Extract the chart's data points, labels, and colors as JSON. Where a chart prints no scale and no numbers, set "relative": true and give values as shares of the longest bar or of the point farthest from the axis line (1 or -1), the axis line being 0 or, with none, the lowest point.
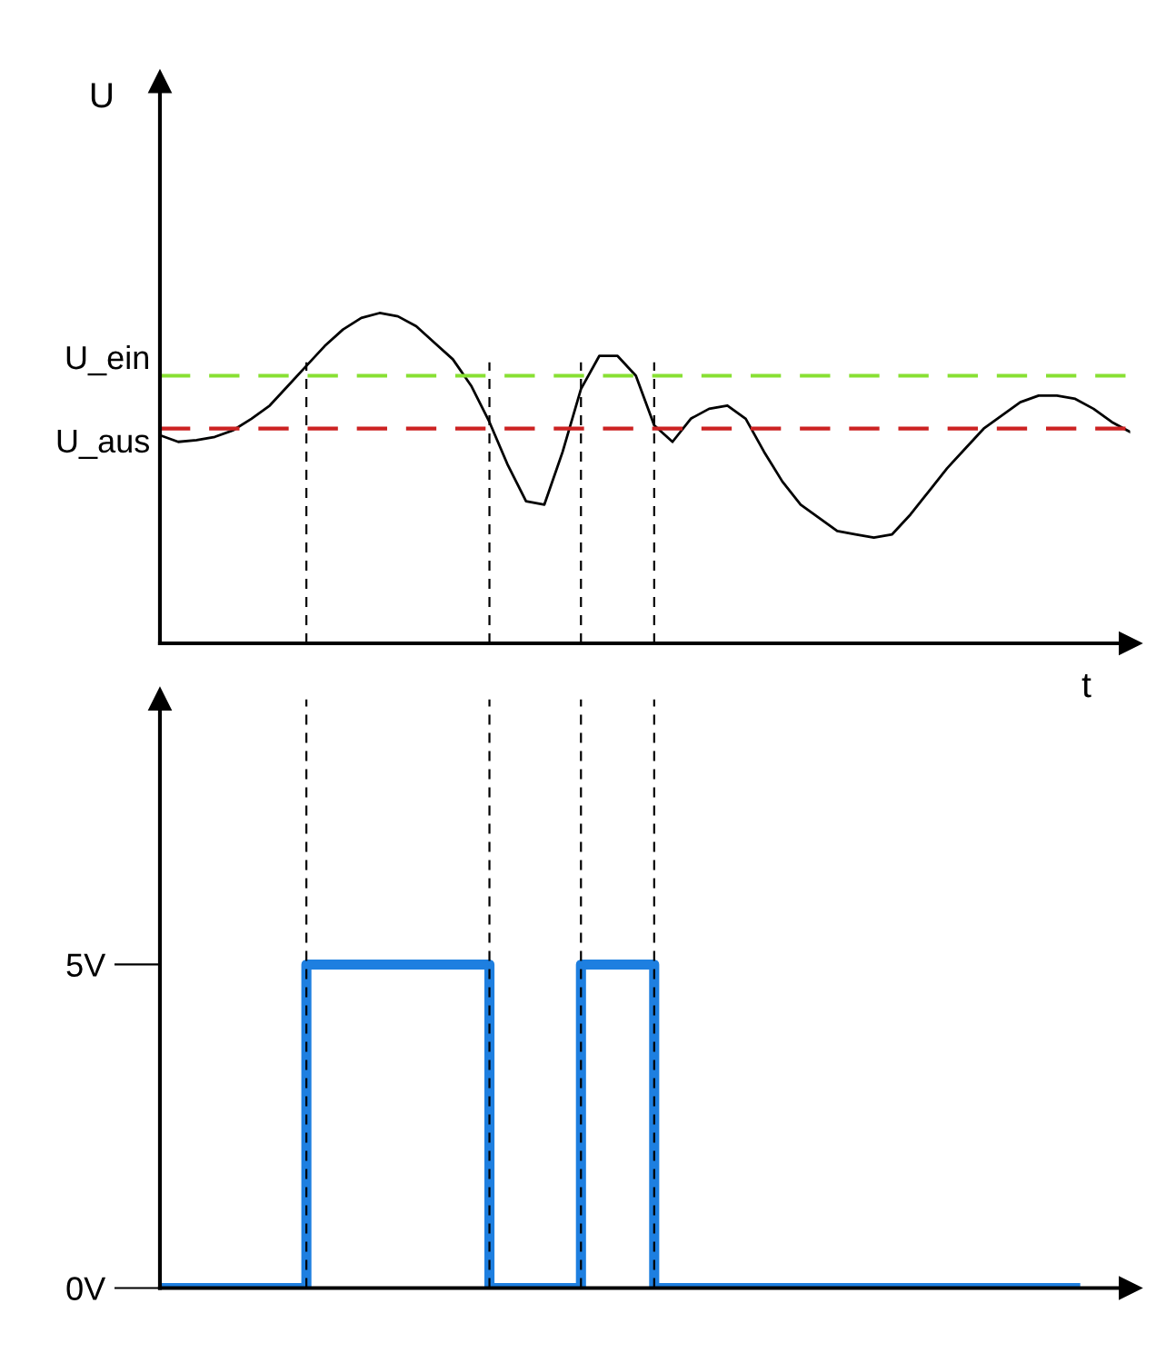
{
  "chart_data": [
    {
      "type": "line",
      "relative": true,
      "ylabel": "U",
      "xlabel": "t",
      "tick_labels": false,
      "grid": "x",
      "legend": false,
      "marker": "none",
      "line_style": "solid",
      "categories": [
        null,
        null,
        null,
        null,
        null,
        null,
        null,
        null,
        null,
        null,
        null,
        null,
        null,
        null,
        null,
        null,
        null,
        null,
        null,
        null,
        null,
        null,
        null,
        null,
        null,
        null,
        null,
        null,
        null,
        null,
        null,
        null,
        null,
        null,
        null,
        null,
        null,
        null,
        null,
        null,
        null,
        null,
        null,
        null,
        null,
        null,
        null,
        null,
        null,
        null,
        null,
        null,
        null,
        null
      ],
      "series": [
        {
          "color": "#000000",
          "values": [
            0.63,
            0.61,
            0.615,
            0.625,
            0.645,
            0.68,
            0.72,
            0.78,
            0.84,
            0.9,
            0.95,
            0.985,
            1.0,
            0.99,
            0.96,
            0.91,
            0.86,
            0.78,
            0.67,
            0.54,
            0.43,
            0.42,
            0.58,
            0.77,
            0.87,
            0.87,
            0.81,
            0.66,
            0.61,
            0.68,
            0.71,
            0.72,
            0.68,
            0.58,
            0.49,
            0.42,
            0.38,
            0.34,
            0.33,
            0.32,
            0.33,
            0.39,
            0.46,
            0.53,
            0.59,
            0.65,
            0.69,
            0.73,
            0.75,
            0.75,
            0.74,
            0.71,
            0.67,
            0.64
          ]
        }
      ],
      "ref_lines": [
        {
          "axis": "y",
          "value": 0.81,
          "label": "U_ein",
          "color": "#88e033",
          "line_style": "dashed"
        },
        {
          "axis": "y",
          "value": 0.65,
          "label": "U_aus",
          "color": "#cc2222",
          "line_style": "dashed"
        }
      ]
    },
    {
      "type": "step",
      "tick_labels": "y",
      "grid": "x",
      "legend": false,
      "marker": "none",
      "line_style": "solid",
      "ylim": [
        0,
        9.1
      ],
      "yticks": [
        {
          "value": 0,
          "label": "0V"
        },
        {
          "value": 5,
          "label": "5V"
        }
      ],
      "categories": [
        null,
        null,
        null,
        null,
        null,
        null,
        null,
        null,
        null,
        null,
        null,
        null,
        null,
        null,
        null,
        null,
        null,
        null,
        null,
        null,
        null,
        null,
        null,
        null,
        null,
        null,
        null,
        null,
        null,
        null,
        null,
        null,
        null,
        null,
        null,
        null,
        null,
        null,
        null,
        null,
        null,
        null,
        null,
        null,
        null,
        null,
        null,
        null,
        null,
        null,
        null,
        null,
        null,
        null
      ],
      "series": [
        {
          "color": "#1e7fe0",
          "values": [
            0,
            0,
            0,
            0,
            0,
            0,
            0,
            0,
            5,
            5,
            5,
            5,
            5,
            5,
            5,
            5,
            5,
            5,
            0,
            0,
            0,
            0,
            0,
            5,
            5,
            5,
            5,
            0,
            0,
            0,
            0,
            0,
            0,
            0,
            0,
            0,
            0,
            0,
            0,
            0,
            0,
            0,
            0,
            0,
            0,
            0,
            0,
            0,
            0,
            0,
            0,
            null,
            null,
            null
          ]
        }
      ]
    }
  ]
}
